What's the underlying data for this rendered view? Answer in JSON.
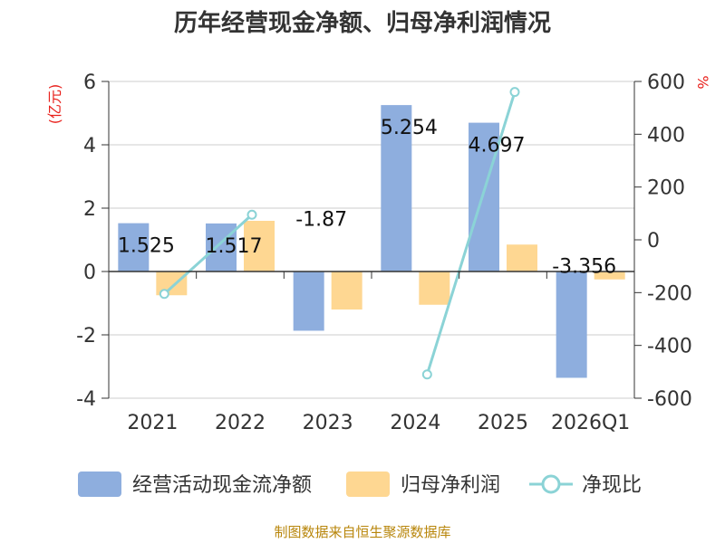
{
  "chart_data": {
    "type": "bar",
    "title": "历年经营现金净额、归母净利润情况",
    "categories": [
      "2021",
      "2022",
      "2023",
      "2024",
      "2025",
      "2026Q1"
    ],
    "left_axis": {
      "unit": "(亿元)",
      "ylim": [
        -4,
        6
      ],
      "ticks": [
        "-4",
        "-2",
        "0",
        "2",
        "4",
        "6"
      ]
    },
    "right_axis": {
      "unit": "%",
      "ylim": [
        -600,
        600
      ],
      "ticks": [
        "-600",
        "-400",
        "-200",
        "0",
        "200",
        "400",
        "600"
      ]
    },
    "series": [
      {
        "name": "经营活动现金流净额",
        "type": "bar",
        "axis": "left",
        "color": "#8eaede",
        "values": [
          1.525,
          1.517,
          -1.87,
          5.254,
          4.697,
          -3.356
        ],
        "data_labels": [
          "1.525",
          "1.517",
          "-1.87",
          "5.254",
          "4.697",
          "-3.356"
        ]
      },
      {
        "name": "归母净利润",
        "type": "bar",
        "axis": "left",
        "color": "#fed792",
        "values": [
          -0.75,
          1.6,
          -1.2,
          -1.05,
          0.85,
          -0.25
        ]
      },
      {
        "name": "净现比",
        "type": "line",
        "axis": "right",
        "color": "#8bd3d6",
        "values": [
          -205,
          95,
          null,
          -510,
          560,
          null
        ]
      }
    ],
    "grid": true,
    "legend": "bottom"
  },
  "source": "制图数据来自恒生聚源数据库"
}
